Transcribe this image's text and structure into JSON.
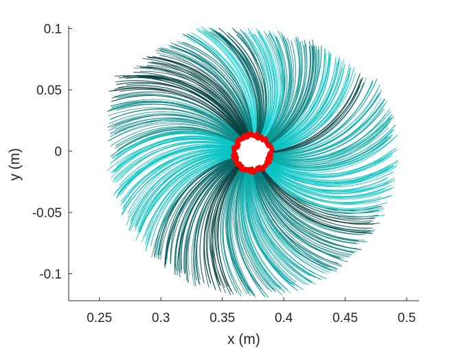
{
  "chart_data": {
    "type": "line",
    "title": "",
    "xlabel": "x (m)",
    "ylabel": "y (m)",
    "xlim": [
      0.225,
      0.51
    ],
    "ylim": [
      -0.122,
      0.102
    ],
    "xticks": [
      0.25,
      0.3,
      0.35,
      0.4,
      0.45,
      0.5
    ],
    "xtick_labels": [
      "0.25",
      "0.3",
      "0.35",
      "0.4",
      "0.45",
      "0.5"
    ],
    "yticks": [
      -0.1,
      -0.05,
      0,
      0.05,
      0.1
    ],
    "ytick_labels": [
      "-0.1",
      "-0.05",
      "0",
      "0.05",
      "0.1"
    ],
    "grid": false,
    "legend": "none",
    "center": [
      0.3745,
      -0.0015
    ],
    "marker_ring_radius": 0.0145,
    "marker_color": "#ff0000",
    "line_colors": [
      "#003f3f",
      "#006060",
      "#007a7a",
      "#009494",
      "#00a8a8",
      "#00c2c2",
      "#1fd6d6",
      "#008787"
    ],
    "boundary_points": [
      [
        0.258,
        0.055
      ],
      [
        0.275,
        0.065
      ],
      [
        0.29,
        0.08
      ],
      [
        0.31,
        0.093
      ],
      [
        0.33,
        0.1
      ],
      [
        0.36,
        0.1
      ],
      [
        0.39,
        0.099
      ],
      [
        0.415,
        0.095
      ],
      [
        0.44,
        0.08
      ],
      [
        0.45,
        0.075
      ],
      [
        0.465,
        0.06
      ],
      [
        0.48,
        0.045
      ],
      [
        0.49,
        0.03
      ],
      [
        0.494,
        0.0
      ],
      [
        0.484,
        -0.02
      ],
      [
        0.477,
        -0.04
      ],
      [
        0.475,
        -0.075
      ],
      [
        0.462,
        -0.1
      ],
      [
        0.448,
        -0.112
      ],
      [
        0.43,
        -0.115
      ],
      [
        0.42,
        -0.121
      ],
      [
        0.405,
        -0.118
      ],
      [
        0.39,
        -0.122
      ],
      [
        0.375,
        -0.12
      ],
      [
        0.355,
        -0.112
      ],
      [
        0.34,
        -0.108
      ],
      [
        0.31,
        -0.11
      ],
      [
        0.288,
        -0.1
      ],
      [
        0.272,
        -0.085
      ],
      [
        0.262,
        -0.06
      ],
      [
        0.259,
        -0.04
      ],
      [
        0.257,
        -0.02
      ],
      [
        0.258,
        0.0
      ],
      [
        0.256,
        0.02
      ],
      [
        0.257,
        0.045
      ]
    ]
  }
}
